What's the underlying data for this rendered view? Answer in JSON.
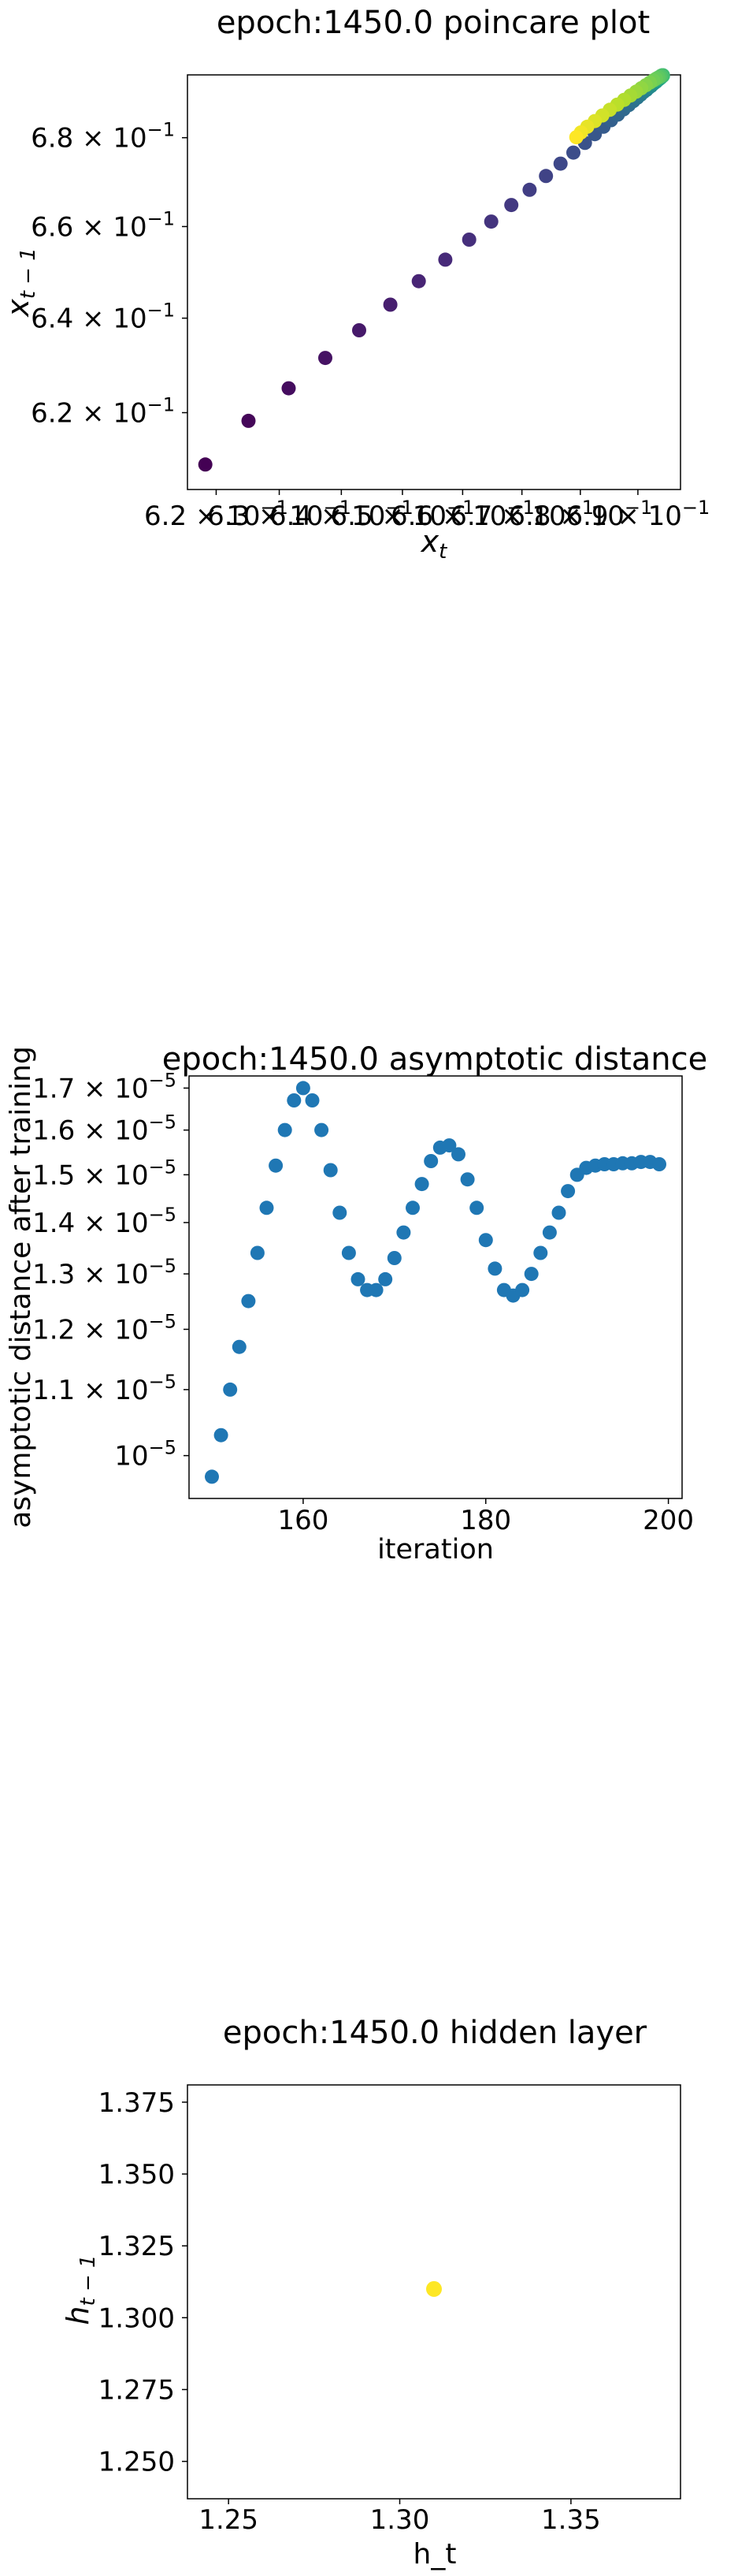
{
  "chart_data": [
    {
      "type": "scatter",
      "title": "epoch:1450.0 poincare plot",
      "xlabel": "x",
      "xlabel_sub": "t",
      "ylabel": "x",
      "ylabel_sub": "t − 1",
      "log_scale": true,
      "xlim": [
        0.6155,
        0.6975
      ],
      "ylim": [
        0.6042,
        0.6945
      ],
      "x_ticks": [
        {
          "value": 0.62,
          "label": "6.2 × 10",
          "exp": "−1"
        },
        {
          "value": 0.63,
          "label": "6.3 × 10",
          "exp": "−1"
        },
        {
          "value": 0.64,
          "label": "6.4 × 10",
          "exp": "−1"
        },
        {
          "value": 0.65,
          "label": "6.5 × 10",
          "exp": "−1"
        },
        {
          "value": 0.66,
          "label": "6.6 × 10",
          "exp": "−1"
        },
        {
          "value": 0.67,
          "label": "6.7 × 10",
          "exp": "−1"
        },
        {
          "value": 0.68,
          "label": "6.8 × 10",
          "exp": "−1"
        },
        {
          "value": 0.69,
          "label": "6.9 × 10",
          "exp": "−1"
        }
      ],
      "y_ticks": [
        {
          "value": 0.62,
          "label": "6.2 × 10",
          "exp": "−1"
        },
        {
          "value": 0.64,
          "label": "6.4 × 10",
          "exp": "−1"
        },
        {
          "value": 0.66,
          "label": "6.6 × 10",
          "exp": "−1"
        },
        {
          "value": 0.68,
          "label": "6.8 × 10",
          "exp": "−1"
        }
      ],
      "colormap": "viridis",
      "x": [
        0.6183,
        0.6251,
        0.6315,
        0.6374,
        0.6429,
        0.648,
        0.6527,
        0.6571,
        0.6611,
        0.6648,
        0.6682,
        0.6713,
        0.6741,
        0.6766,
        0.6788,
        0.6808,
        0.6825,
        0.684,
        0.6853,
        0.6865,
        0.6875,
        0.6884,
        0.6892,
        0.6899,
        0.6905,
        0.691,
        0.6915,
        0.6919,
        0.6923,
        0.6926,
        0.6929,
        0.6932,
        0.6934,
        0.6936,
        0.6938,
        0.694,
        0.6941,
        0.6942,
        0.6943,
        0.6944,
        0.6944,
        0.6943,
        0.6941,
        0.6939,
        0.6936,
        0.6932,
        0.6927,
        0.6921,
        0.6914,
        0.6906,
        0.6897,
        0.6887,
        0.6876,
        0.6864,
        0.6851,
        0.6838,
        0.6825,
        0.6812,
        0.6801,
        0.6793
      ],
      "y": [
        0.6093,
        0.6183,
        0.6251,
        0.6315,
        0.6374,
        0.6429,
        0.648,
        0.6527,
        0.6571,
        0.6611,
        0.6648,
        0.6682,
        0.6713,
        0.6741,
        0.6766,
        0.6788,
        0.6808,
        0.6825,
        0.684,
        0.6853,
        0.6865,
        0.6875,
        0.6884,
        0.6892,
        0.6899,
        0.6905,
        0.691,
        0.6915,
        0.6919,
        0.6923,
        0.6926,
        0.6929,
        0.6932,
        0.6934,
        0.6936,
        0.6938,
        0.694,
        0.6941,
        0.6942,
        0.6943,
        0.6944,
        0.6944,
        0.6943,
        0.6941,
        0.6939,
        0.6936,
        0.6932,
        0.6927,
        0.6921,
        0.6914,
        0.6906,
        0.6897,
        0.6887,
        0.6876,
        0.6864,
        0.6851,
        0.6838,
        0.6825,
        0.6812,
        0.6801
      ],
      "grid": false
    },
    {
      "type": "scatter",
      "title": "epoch:1450.0 asymptotic distance",
      "xlabel": "iteration",
      "ylabel": "asymptotic distance after training",
      "log_scale_y": true,
      "xlim": [
        147.5,
        201.5
      ],
      "ylim": [
        9.4e-06,
        1.73e-05
      ],
      "x_ticks": [
        {
          "value": 160,
          "label": "160"
        },
        {
          "value": 180,
          "label": "180"
        },
        {
          "value": 200,
          "label": "200"
        }
      ],
      "y_ticks": [
        {
          "value": 1e-05,
          "label": "10",
          "exp": "−5"
        },
        {
          "value": 1.1e-05,
          "label": "1.1 × 10",
          "exp": "−5"
        },
        {
          "value": 1.2e-05,
          "label": "1.2 × 10",
          "exp": "−5"
        },
        {
          "value": 1.3e-05,
          "label": "1.3 × 10",
          "exp": "−5"
        },
        {
          "value": 1.4e-05,
          "label": "1.4 × 10",
          "exp": "−5"
        },
        {
          "value": 1.5e-05,
          "label": "1.5 × 10",
          "exp": "−5"
        },
        {
          "value": 1.6e-05,
          "label": "1.6 × 10",
          "exp": "−5"
        },
        {
          "value": 1.7e-05,
          "label": "1.7 × 10",
          "exp": "−5"
        }
      ],
      "color": "#1f77b4",
      "x": [
        150,
        151,
        152,
        153,
        154,
        155,
        156,
        157,
        158,
        159,
        160,
        161,
        162,
        163,
        164,
        165,
        166,
        167,
        168,
        169,
        170,
        171,
        172,
        173,
        174,
        175,
        176,
        177,
        178,
        179,
        180,
        181,
        182,
        183,
        184,
        185,
        186,
        187,
        188,
        189,
        190,
        191,
        192,
        193,
        194,
        195,
        196,
        197,
        198,
        199
      ],
      "y": [
        9.7e-06,
        1.03e-05,
        1.1e-05,
        1.17e-05,
        1.25e-05,
        1.34e-05,
        1.43e-05,
        1.52e-05,
        1.6e-05,
        1.67e-05,
        1.7e-05,
        1.67e-05,
        1.6e-05,
        1.51e-05,
        1.42e-05,
        1.34e-05,
        1.29e-05,
        1.27e-05,
        1.27e-05,
        1.29e-05,
        1.33e-05,
        1.38e-05,
        1.43e-05,
        1.48e-05,
        1.53e-05,
        1.56e-05,
        1.565e-05,
        1.545e-05,
        1.49e-05,
        1.43e-05,
        1.365e-05,
        1.31e-05,
        1.27e-05,
        1.26e-05,
        1.27e-05,
        1.3e-05,
        1.34e-05,
        1.38e-05,
        1.42e-05,
        1.465e-05,
        1.5e-05,
        1.515e-05,
        1.52e-05,
        1.523e-05,
        1.523e-05,
        1.525e-05,
        1.525e-05,
        1.528e-05,
        1.528e-05,
        1.523e-05
      ],
      "grid": false
    },
    {
      "type": "scatter",
      "title": "epoch:1450.0 hidden layer",
      "xlabel": "h_t",
      "ylabel": "h",
      "ylabel_sub": "t − 1",
      "xlim": [
        1.238,
        1.382
      ],
      "ylim": [
        1.237,
        1.381
      ],
      "x_ticks": [
        {
          "value": 1.25,
          "label": "1.25"
        },
        {
          "value": 1.3,
          "label": "1.30"
        },
        {
          "value": 1.35,
          "label": "1.35"
        }
      ],
      "y_ticks": [
        {
          "value": 1.25,
          "label": "1.250"
        },
        {
          "value": 1.275,
          "label": "1.275"
        },
        {
          "value": 1.3,
          "label": "1.300"
        },
        {
          "value": 1.325,
          "label": "1.325"
        },
        {
          "value": 1.35,
          "label": "1.350"
        },
        {
          "value": 1.375,
          "label": "1.375"
        }
      ],
      "color": "#fde725",
      "x": [
        1.31
      ],
      "y": [
        1.31
      ],
      "grid": false
    }
  ]
}
